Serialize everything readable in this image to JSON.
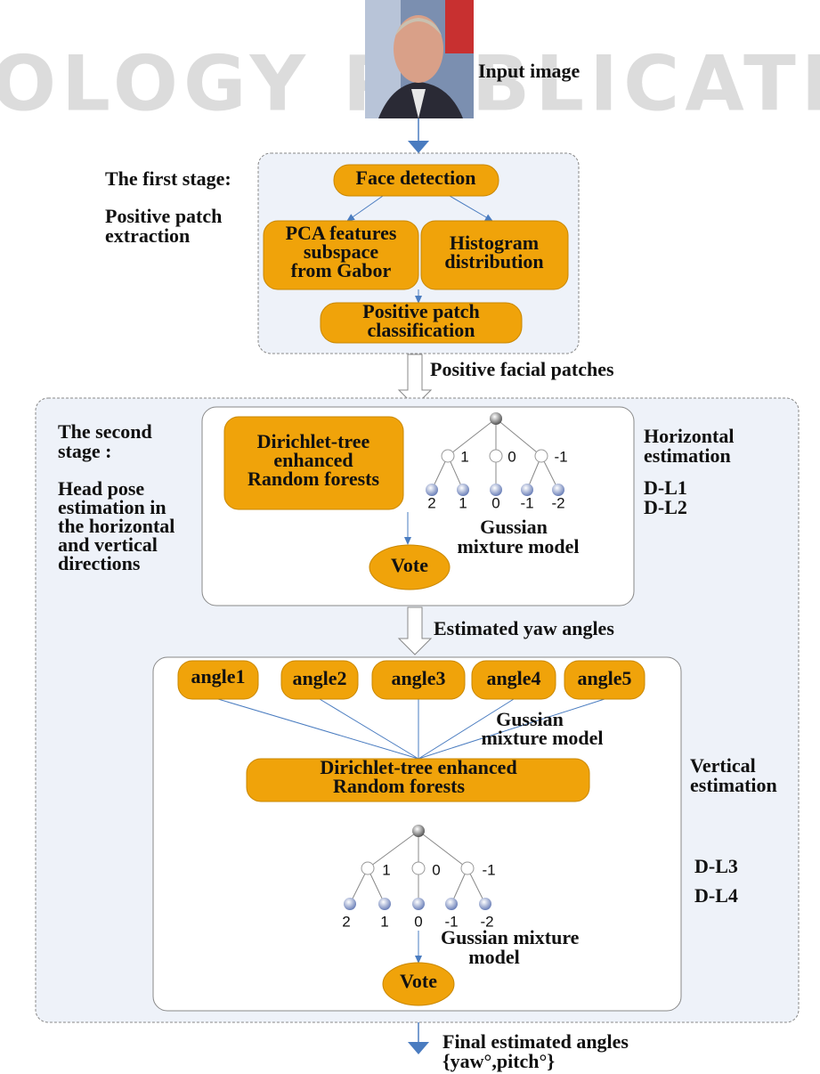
{
  "watermark": "OLOGY PUBLICATIONS",
  "input_image": {
    "label": "Input image"
  },
  "stage1": {
    "title": "The first stage:",
    "subtitle": [
      "Positive patch",
      "extraction"
    ],
    "nodes": {
      "face_detection": "Face detection",
      "pca": [
        "PCA features",
        "subspace",
        "from Gabor"
      ],
      "histogram": [
        "Histogram",
        "distribution"
      ],
      "classification": [
        "Positive patch",
        "classification"
      ]
    }
  },
  "flow1": "Positive facial patches",
  "stage2": {
    "title": [
      "The second",
      "stage :"
    ],
    "subtitle": [
      "Head pose",
      "estimation in",
      "the horizontal",
      "and vertical",
      "directions"
    ],
    "horizontal": {
      "label": [
        "Horizontal",
        "estimation"
      ],
      "levels": [
        "D-L1",
        "D-L2"
      ],
      "forest": [
        "Dirichlet-tree",
        "enhanced",
        "Random forests"
      ],
      "tree": {
        "branches": [
          "1",
          "0",
          "-1"
        ],
        "leaves": [
          "2",
          "1",
          "0",
          "-1",
          "-2"
        ]
      },
      "gmm": [
        "Gussian",
        "mixture model"
      ],
      "vote": "Vote"
    },
    "flow2": "Estimated yaw angles",
    "vertical": {
      "label": [
        "Vertical",
        "estimation"
      ],
      "angles": [
        "angle1",
        "angle2",
        "angle3",
        "angle4",
        "angle5"
      ],
      "gmm_top": [
        "Gussian",
        "mixture model"
      ],
      "forest": [
        "Dirichlet-tree enhanced",
        "Random forests"
      ],
      "tree": {
        "branches": [
          "1",
          "0",
          "-1"
        ],
        "leaves": [
          "2",
          "1",
          "0",
          "-1",
          "-2"
        ]
      },
      "gmm": [
        "Gussian mixture",
        "model"
      ],
      "levels": [
        "D-L3",
        "D-L4"
      ],
      "vote": "Vote"
    }
  },
  "output": [
    "Final estimated angles",
    "{yaw°,pitch°}"
  ]
}
